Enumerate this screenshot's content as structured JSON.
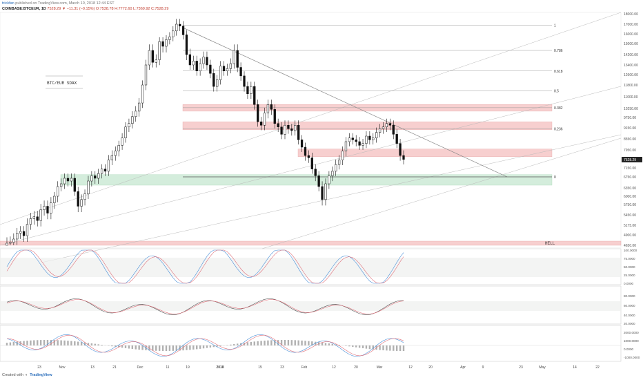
{
  "header": {
    "author": "trickfan",
    "published": "published on TradingView.com, March 10, 2018 12:44 EST",
    "symbol": "COINBASE:BTCEUR, 1D",
    "ohlc": "7528.29 ▼ −11.31 (−0.15%) O:7538.78 H:7772.60 L:7369.92 C:7528.29"
  },
  "footer": {
    "created_with": "Created with",
    "brand": "TradingView"
  },
  "colors": {
    "candle": "#111111",
    "band_red": "#f6c7c7",
    "band_green": "#cdebd6",
    "trend": "#888888",
    "stoch_k": "#4a90d9",
    "stoch_d": "#e0707a"
  },
  "chart_data": {
    "type": "candlestick",
    "title": "BTC/EUR SDAX",
    "y_axis_ticks": [
      "18000.00",
      "17000.00",
      "16000.00",
      "15000.00",
      "14200.00",
      "13400.00",
      "12600.00",
      "11800.00",
      "11000.00",
      "10250.00",
      "9750.00",
      "9150.00",
      "8550.00",
      "7950.00",
      "7528.29",
      "7150.00",
      "6750.00",
      "6350.00",
      "6000.00",
      "5750.00",
      "5450.00",
      "5175.00",
      "4900.00",
      "4650.00"
    ],
    "last_price": "7528.29",
    "x_axis_ticks": [
      "23",
      "Nov",
      "13",
      "21",
      "Dec",
      "11",
      "19",
      "2018",
      "15",
      "23",
      "Feb",
      "12",
      "20",
      "Mar",
      "12",
      "20",
      "Apr",
      "9",
      "23",
      "May",
      "14",
      "22"
    ],
    "fib_levels": [
      {
        "label": "1",
        "value": 16900
      },
      {
        "label": "0.786",
        "value": 14500
      },
      {
        "label": "0.618",
        "value": 12900
      },
      {
        "label": "0.5",
        "value": 11400
      },
      {
        "label": "0.382",
        "value": 10300
      },
      {
        "label": "0.236",
        "value": 9100
      },
      {
        "label": "0",
        "value": 6750
      }
    ],
    "zones": [
      {
        "label": "",
        "color": "red",
        "low": 10100,
        "high": 10500
      },
      {
        "label": "",
        "color": "red",
        "low": 9050,
        "high": 9500
      },
      {
        "label": "",
        "color": "red",
        "low": 7650,
        "high": 8000
      },
      {
        "label": "",
        "color": "green",
        "low": 6450,
        "high": 6850
      },
      {
        "label": "HELL",
        "color": "red",
        "low": 4400,
        "high": 4750
      }
    ],
    "closes": [
      4700,
      4720,
      4800,
      4950,
      5000,
      4880,
      5200,
      5350,
      5400,
      5300,
      5600,
      5700,
      5500,
      5800,
      6000,
      6400,
      6500,
      6700,
      6600,
      6700,
      6200,
      5700,
      5900,
      6100,
      6600,
      6800,
      6700,
      6900,
      7100,
      7000,
      7500,
      7700,
      7900,
      8200,
      8600,
      9200,
      9400,
      9800,
      10100,
      10600,
      11800,
      13400,
      14500,
      13600,
      13800,
      15200,
      14800,
      15400,
      15700,
      16300,
      17000,
      16800,
      15900,
      14200,
      13400,
      13700,
      12900,
      13500,
      14000,
      13400,
      12700,
      11700,
      12200,
      13300,
      12900,
      13100,
      13500,
      14500,
      13200,
      12500,
      11700,
      11200,
      11700,
      10500,
      9500,
      9300,
      10000,
      10500,
      10200,
      9400,
      9200,
      8800,
      9300,
      9100,
      9000,
      9300,
      8500,
      8100,
      7700,
      7600,
      7100,
      6800,
      6400,
      5900,
      6500,
      6800,
      7000,
      7300,
      7500,
      7900,
      8400,
      8600,
      8500,
      8400,
      8200,
      8300,
      8700,
      8500,
      8600,
      8900,
      9100,
      9200,
      9400,
      9300,
      8800,
      8300,
      7700,
      7528
    ]
  },
  "panels": {
    "stoch": {
      "ticks": [
        "100.0000",
        "75.0000",
        "50.0000",
        "25.0000",
        "0.0000"
      ]
    },
    "rsi": {
      "ticks": [
        "80.0000",
        "60.0000",
        "40.0000",
        "20.0000"
      ]
    },
    "macd": {
      "ticks": [
        "2000.0000",
        "1000.0000",
        "0.0000",
        "-1000.0000"
      ]
    }
  }
}
